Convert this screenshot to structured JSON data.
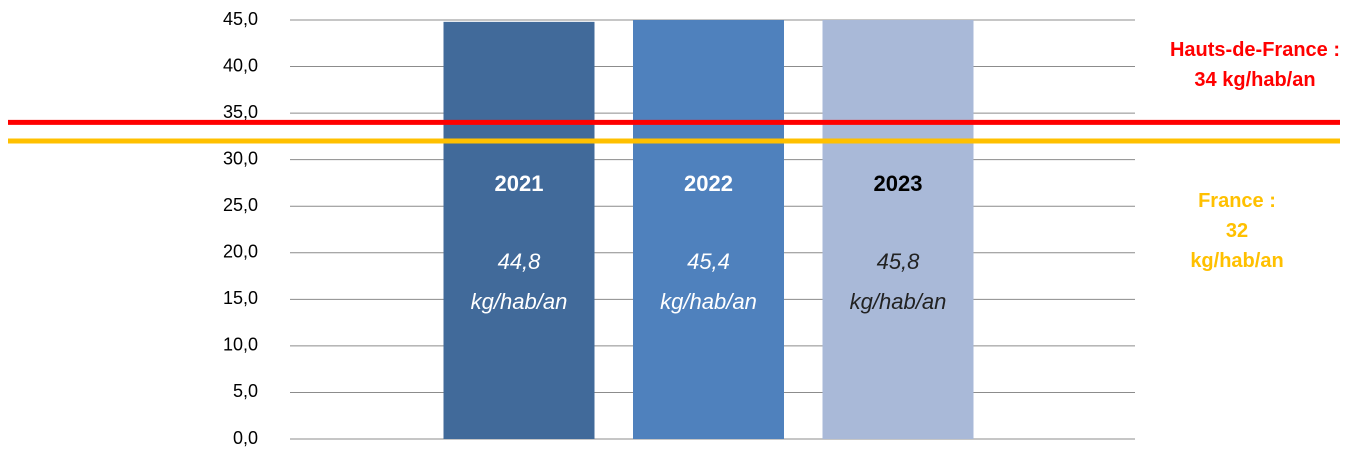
{
  "chart_data": {
    "type": "bar",
    "categories": [
      "2021",
      "2022",
      "2023"
    ],
    "values": [
      44.8,
      45.4,
      45.8
    ],
    "value_labels": [
      "44,8 kg/hab/an",
      "45,4 kg/hab/an",
      "45,8 kg/hab/an"
    ],
    "colors": [
      "#416a9a",
      "#4f81bd",
      "#a9b9d8"
    ],
    "label_colors": [
      "#ffffff",
      "#ffffff",
      "#000000"
    ],
    "ylim": [
      0,
      45
    ],
    "yticks": [
      {
        "value": 0,
        "label": "0,0"
      },
      {
        "value": 5,
        "label": "5,0"
      },
      {
        "value": 10,
        "label": "10,0"
      },
      {
        "value": 15,
        "label": "15,0"
      },
      {
        "value": 20,
        "label": "20,0"
      },
      {
        "value": 25,
        "label": "25,0"
      },
      {
        "value": 30,
        "label": "30,0"
      },
      {
        "value": 35,
        "label": "35,0"
      },
      {
        "value": 40,
        "label": "40,0"
      },
      {
        "value": 45,
        "label": "45,0"
      }
    ],
    "grid": true,
    "reference_lines": [
      {
        "value": 34,
        "color": "#ff0000",
        "label": "Hauts-de-France : 34 kg/hab/an"
      },
      {
        "value": 32,
        "color": "#ffc000",
        "label": "France : 32 kg/hab/an"
      }
    ]
  }
}
